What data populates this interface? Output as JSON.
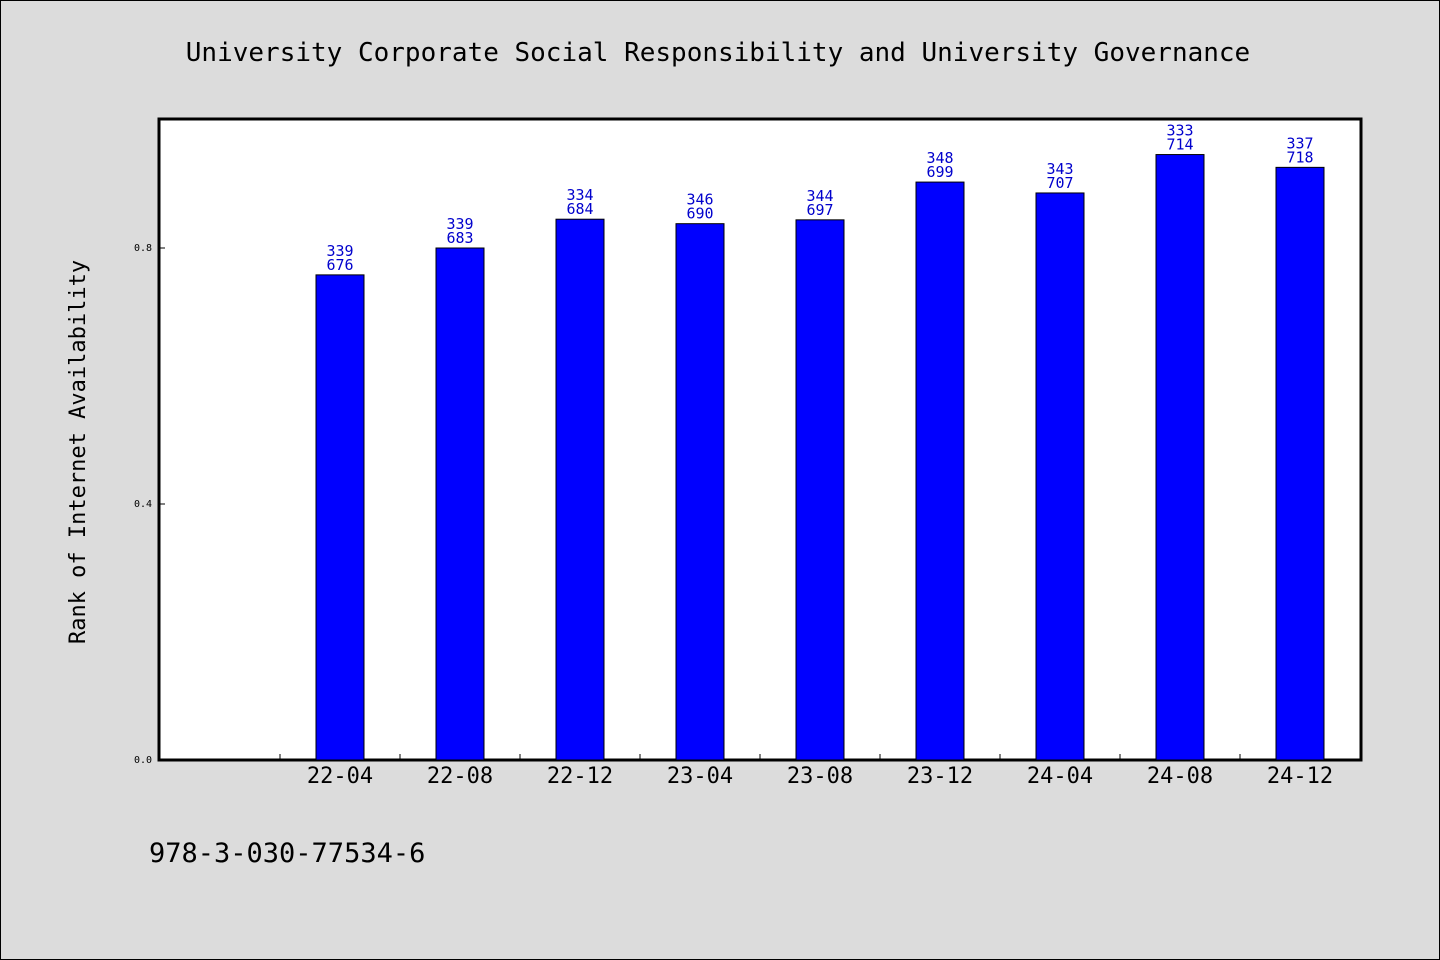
{
  "chart_data": {
    "type": "bar",
    "title": "University Corporate Social Responsibility and University Governance",
    "ylabel": "Rank of Internet Availability",
    "xlabel": "",
    "categories": [
      "22-04",
      "22-08",
      "22-12",
      "23-04",
      "23-08",
      "23-12",
      "24-04",
      "24-08",
      "24-12"
    ],
    "values": [
      0.758,
      0.8,
      0.845,
      0.838,
      0.844,
      0.903,
      0.886,
      0.946,
      0.926
    ],
    "data_labels": [
      [
        "339",
        "676"
      ],
      [
        "339",
        "683"
      ],
      [
        "334",
        "684"
      ],
      [
        "346",
        "690"
      ],
      [
        "344",
        "697"
      ],
      [
        "348",
        "699"
      ],
      [
        "343",
        "707"
      ],
      [
        "333",
        "714"
      ],
      [
        "337",
        "718"
      ]
    ],
    "yticks": [
      "0.0",
      "0.4",
      "0.8"
    ],
    "ylim": [
      0,
      1.0
    ],
    "legend": "none",
    "grid": false,
    "colors": {
      "bar": "#0000ff",
      "bar_edge": "#000000",
      "label": "#0000cc",
      "background": "#dcdcdc",
      "plot_background": "#ffffff"
    }
  },
  "footer": {
    "isbn": "978-3-030-77534-6"
  }
}
